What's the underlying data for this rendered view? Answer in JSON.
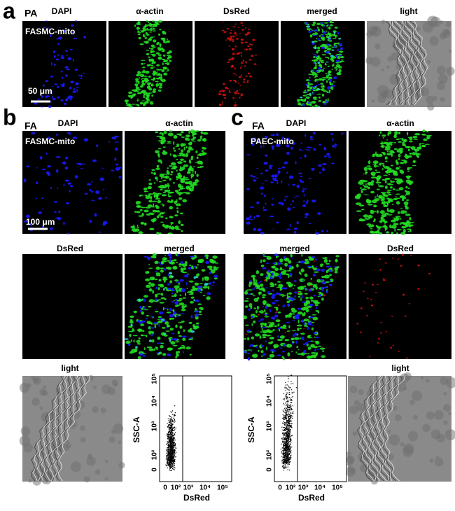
{
  "panel_a": {
    "letter": "a",
    "condition": "PA",
    "columns": [
      "DAPI",
      "α-actin",
      "DsRed",
      "merged",
      "light"
    ],
    "cell_label": "FASMC-mito",
    "scale_bar": "50 μm"
  },
  "panel_b": {
    "letter": "b",
    "condition": "FA",
    "labels": [
      "DAPI",
      "α-actin",
      "DsRed",
      "merged",
      "light"
    ],
    "cell_label": "FASMC-mito",
    "scale_bar": "100 μm",
    "flow": {
      "y_label": "SSC-A",
      "x_label": "DsRed",
      "yticks": [
        "10⁵",
        "10⁴",
        "10³",
        "10²",
        "0"
      ],
      "xticks": [
        "0",
        "10²",
        "10³",
        "10⁴",
        "10⁵"
      ]
    }
  },
  "panel_c": {
    "letter": "c",
    "condition": "FA",
    "labels": [
      "DAPI",
      "α-actin",
      "merged",
      "DsRed",
      "light"
    ],
    "cell_label": "PAEC-mito",
    "flow": {
      "y_label": "SSC-A",
      "x_label": "DsRed",
      "yticks": [
        "10⁵",
        "10⁴",
        "10³",
        "10²",
        "0"
      ],
      "xticks": [
        "0",
        "10²",
        "10³",
        "10⁴",
        "10⁵"
      ]
    }
  }
}
